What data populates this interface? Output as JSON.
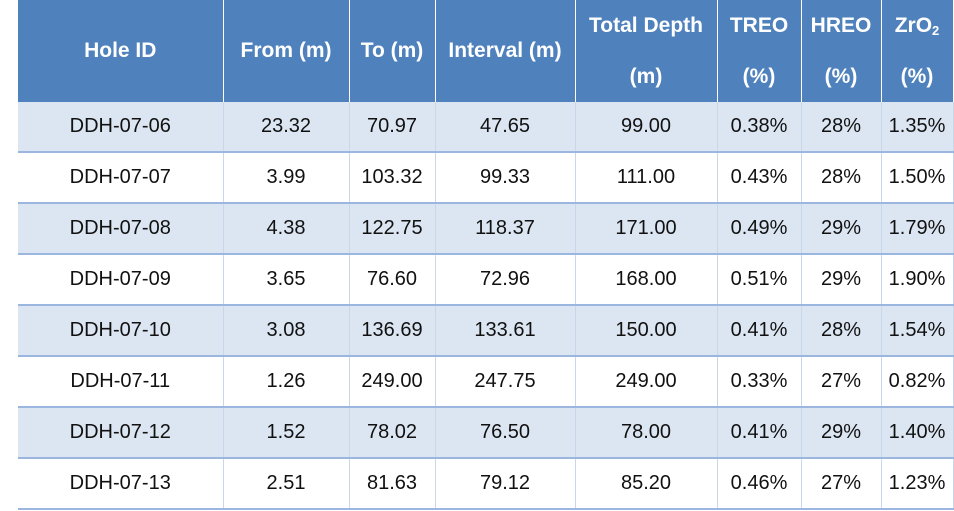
{
  "table": {
    "headers": {
      "hole_id": "Hole ID",
      "from": "From (m)",
      "to": "To (m)",
      "interval": "Interval (m)",
      "total_depth_line1": "Total Depth",
      "total_depth_line2": "(m)",
      "treo_line1": "TREO",
      "treo_line2": "(%)",
      "hreo_line1": "HREO",
      "hreo_line2": "(%)",
      "zro2_main": "ZrO",
      "zro2_sub": "2",
      "zro2_line2": "(%)"
    },
    "rows": [
      {
        "hole_id": "DDH-07-06",
        "from": "23.32",
        "to": "70.97",
        "interval": "47.65",
        "total_depth": "99.00",
        "treo": "0.38%",
        "hreo": "28%",
        "zro2": "1.35%"
      },
      {
        "hole_id": "DDH-07-07",
        "from": "3.99",
        "to": "103.32",
        "interval": "99.33",
        "total_depth": "111.00",
        "treo": "0.43%",
        "hreo": "28%",
        "zro2": "1.50%"
      },
      {
        "hole_id": "DDH-07-08",
        "from": "4.38",
        "to": "122.75",
        "interval": "118.37",
        "total_depth": "171.00",
        "treo": "0.49%",
        "hreo": "29%",
        "zro2": "1.79%"
      },
      {
        "hole_id": "DDH-07-09",
        "from": "3.65",
        "to": "76.60",
        "interval": "72.96",
        "total_depth": "168.00",
        "treo": "0.51%",
        "hreo": "29%",
        "zro2": "1.90%"
      },
      {
        "hole_id": "DDH-07-10",
        "from": "3.08",
        "to": "136.69",
        "interval": "133.61",
        "total_depth": "150.00",
        "treo": "0.41%",
        "hreo": "28%",
        "zro2": "1.54%"
      },
      {
        "hole_id": "DDH-07-11",
        "from": "1.26",
        "to": "249.00",
        "interval": "247.75",
        "total_depth": "249.00",
        "treo": "0.33%",
        "hreo": "27%",
        "zro2": "0.82%"
      },
      {
        "hole_id": "DDH-07-12",
        "from": "1.52",
        "to": "78.02",
        "interval": "76.50",
        "total_depth": "78.00",
        "treo": "0.41%",
        "hreo": "29%",
        "zro2": "1.40%"
      },
      {
        "hole_id": "DDH-07-13",
        "from": "2.51",
        "to": "81.63",
        "interval": "79.12",
        "total_depth": "85.20",
        "treo": "0.46%",
        "hreo": "27%",
        "zro2": "1.23%"
      }
    ]
  },
  "colors": {
    "header_bg": "#4f81bd",
    "band_row": "#dce6f2",
    "row_divider": "#9bb7df"
  }
}
